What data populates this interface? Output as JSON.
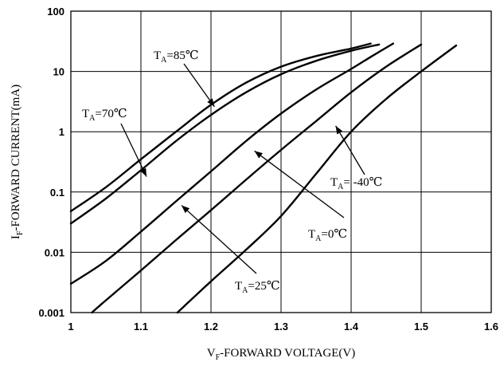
{
  "chart_data": {
    "type": "line",
    "xlabel": {
      "main": "V",
      "sub": "F",
      "rest": "-FORWARD VOLTAGE(V)"
    },
    "ylabel": {
      "main": "I",
      "sub": "F",
      "rest": "-FORWARD CURRENT(mA)"
    },
    "xlim": [
      1.0,
      1.6
    ],
    "ylim": [
      0.001,
      100
    ],
    "yscale": "log",
    "grid": true,
    "x_ticks": [
      "1",
      "1.1",
      "1.2",
      "1.3",
      "1.4",
      "1.5",
      "1.6"
    ],
    "y_ticks": [
      "0.001",
      "0.01",
      "0.1",
      "1",
      "10",
      "100"
    ],
    "series": [
      {
        "name": "85℃",
        "points": [
          [
            1.0,
            0.048
          ],
          [
            1.05,
            0.12
          ],
          [
            1.1,
            0.35
          ],
          [
            1.15,
            1.0
          ],
          [
            1.2,
            2.8
          ],
          [
            1.25,
            6.5
          ],
          [
            1.3,
            12
          ],
          [
            1.35,
            18
          ],
          [
            1.4,
            24
          ],
          [
            1.428,
            29
          ]
        ]
      },
      {
        "name": "70℃",
        "points": [
          [
            1.0,
            0.03
          ],
          [
            1.05,
            0.078
          ],
          [
            1.1,
            0.23
          ],
          [
            1.15,
            0.7
          ],
          [
            1.2,
            1.9
          ],
          [
            1.25,
            4.5
          ],
          [
            1.3,
            9
          ],
          [
            1.35,
            15
          ],
          [
            1.4,
            22
          ],
          [
            1.44,
            28
          ]
        ]
      },
      {
        "name": "25℃",
        "points": [
          [
            1.0,
            0.003
          ],
          [
            1.05,
            0.0072
          ],
          [
            1.1,
            0.022
          ],
          [
            1.15,
            0.07
          ],
          [
            1.2,
            0.22
          ],
          [
            1.25,
            0.7
          ],
          [
            1.3,
            2.0
          ],
          [
            1.35,
            5.0
          ],
          [
            1.4,
            11
          ],
          [
            1.43,
            18
          ],
          [
            1.46,
            29
          ]
        ]
      },
      {
        "name": "0℃",
        "points": [
          [
            1.03,
            0.001
          ],
          [
            1.05,
            0.0016
          ],
          [
            1.1,
            0.005
          ],
          [
            1.15,
            0.016
          ],
          [
            1.2,
            0.05
          ],
          [
            1.25,
            0.16
          ],
          [
            1.3,
            0.5
          ],
          [
            1.35,
            1.5
          ],
          [
            1.4,
            4.5
          ],
          [
            1.45,
            12
          ],
          [
            1.5,
            28
          ]
        ]
      },
      {
        "name": "-40℃",
        "points": [
          [
            1.152,
            0.001
          ],
          [
            1.2,
            0.0033
          ],
          [
            1.25,
            0.011
          ],
          [
            1.3,
            0.04
          ],
          [
            1.35,
            0.2
          ],
          [
            1.4,
            1.0
          ],
          [
            1.45,
            3.5
          ],
          [
            1.5,
            10
          ],
          [
            1.55,
            27
          ]
        ]
      }
    ],
    "annotations": [
      {
        "prefix": "T",
        "sub": "A",
        "text": "=85℃"
      },
      {
        "prefix": "T",
        "sub": "A",
        "text": "=70℃"
      },
      {
        "prefix": "T",
        "sub": "A",
        "text": "= -40℃"
      },
      {
        "prefix": "T",
        "sub": "A",
        "text": "=0℃"
      },
      {
        "prefix": "T",
        "sub": "A",
        "text": "=25℃"
      }
    ]
  }
}
